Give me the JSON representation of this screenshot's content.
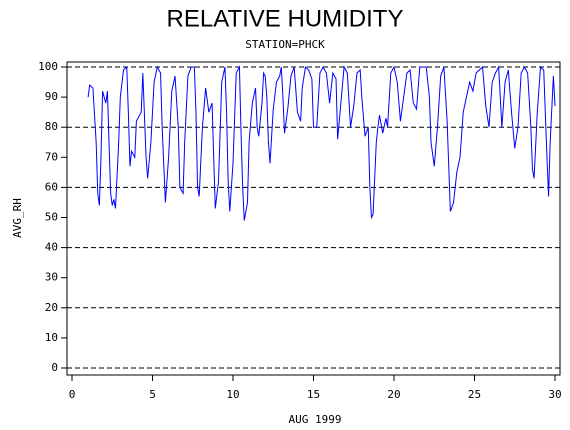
{
  "chart_data": {
    "type": "line",
    "title": "RELATIVE HUMIDITY",
    "subtitle": "STATION=PHCK",
    "x_label": "AUG 1999",
    "y_label": "AVG_RH",
    "xlim": [
      0,
      30
    ],
    "xticks": [
      0,
      5,
      10,
      15,
      20,
      25,
      30
    ],
    "ylim": [
      0,
      100
    ],
    "yticks": [
      0,
      10,
      20,
      30,
      40,
      50,
      60,
      70,
      80,
      90,
      100
    ],
    "ygrid": [
      0,
      20,
      40,
      60,
      80,
      100
    ],
    "series": [
      {
        "color": "#0000ff",
        "x": [
          1.0,
          1.1,
          1.3,
          1.5,
          1.6,
          1.7,
          1.8,
          1.9,
          2.1,
          2.2,
          2.3,
          2.4,
          2.5,
          2.6,
          2.7,
          2.9,
          3.0,
          3.2,
          3.4,
          3.5,
          3.6,
          3.7,
          3.9,
          4.0,
          4.3,
          4.4,
          4.6,
          4.7,
          4.9,
          5.1,
          5.3,
          5.5,
          5.6,
          5.8,
          6.0,
          6.2,
          6.4,
          6.6,
          6.7,
          6.9,
          7.0,
          7.2,
          7.4,
          7.6,
          7.7,
          7.8,
          7.9,
          8.1,
          8.3,
          8.5,
          8.7,
          8.8,
          8.9,
          9.1,
          9.3,
          9.5,
          9.6,
          9.7,
          9.8,
          10.0,
          10.2,
          10.4,
          10.5,
          10.6,
          10.7,
          10.9,
          11.0,
          11.2,
          11.4,
          11.5,
          11.6,
          11.8,
          11.9,
          12.0,
          12.1,
          12.2,
          12.3,
          12.5,
          12.7,
          12.9,
          13.0,
          13.1,
          13.2,
          13.4,
          13.6,
          13.8,
          14.0,
          14.2,
          14.3,
          14.5,
          14.7,
          14.9,
          15.0,
          15.2,
          15.4,
          15.6,
          15.8,
          16.0,
          16.2,
          16.4,
          16.5,
          16.7,
          16.9,
          17.1,
          17.3,
          17.5,
          17.7,
          17.9,
          18.0,
          18.2,
          18.4,
          18.5,
          18.6,
          18.7,
          18.9,
          19.0,
          19.1,
          19.3,
          19.5,
          19.6,
          19.8,
          20.0,
          20.2,
          20.4,
          20.6,
          20.8,
          21.0,
          21.2,
          21.4,
          21.6,
          21.8,
          22.0,
          22.2,
          22.3,
          22.5,
          22.7,
          22.9,
          23.1,
          23.3,
          23.5,
          23.7,
          23.9,
          24.1,
          24.3,
          24.5,
          24.7,
          24.9,
          25.1,
          25.3,
          25.5,
          25.7,
          25.9,
          26.1,
          26.3,
          26.5,
          26.7,
          26.9,
          27.1,
          27.3,
          27.5,
          27.7,
          27.9,
          28.1,
          28.3,
          28.5,
          28.6,
          28.7,
          28.9,
          29.1,
          29.3,
          29.5,
          29.6,
          29.7,
          29.9,
          30.0
        ],
        "values": [
          90,
          94,
          93,
          75,
          58,
          54,
          70,
          92,
          88,
          92,
          75,
          58,
          54,
          56,
          53,
          75,
          90,
          99,
          100,
          85,
          67,
          72,
          70,
          82,
          85,
          98,
          70,
          63,
          75,
          95,
          100,
          98,
          80,
          55,
          70,
          92,
          97,
          80,
          60,
          58,
          75,
          97,
          100,
          100,
          85,
          60,
          57,
          80,
          93,
          85,
          88,
          70,
          53,
          62,
          95,
          100,
          85,
          62,
          52,
          68,
          98,
          100,
          78,
          60,
          49,
          55,
          75,
          88,
          93,
          80,
          77,
          88,
          98,
          97,
          90,
          75,
          68,
          86,
          95,
          97,
          100,
          90,
          78,
          86,
          97,
          100,
          85,
          82,
          93,
          100,
          99,
          96,
          80,
          80,
          98,
          100,
          98,
          88,
          98,
          96,
          76,
          88,
          100,
          98,
          80,
          87,
          98,
          99,
          90,
          77,
          80,
          60,
          50,
          51,
          75,
          80,
          84,
          78,
          83,
          80,
          98,
          100,
          95,
          82,
          90,
          98,
          99,
          88,
          86,
          100,
          100,
          100,
          90,
          75,
          67,
          80,
          97,
          100,
          82,
          52,
          55,
          65,
          70,
          85,
          90,
          95,
          92,
          98,
          99,
          100,
          87,
          80,
          95,
          98,
          100,
          80,
          95,
          99,
          85,
          73,
          80,
          98,
          100,
          98,
          80,
          66,
          63,
          85,
          100,
          99,
          70,
          57,
          75,
          97,
          87
        ]
      }
    ]
  }
}
